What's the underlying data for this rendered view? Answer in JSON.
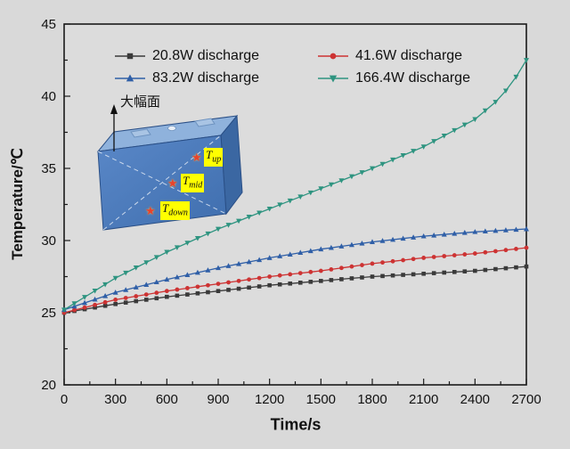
{
  "figure": {
    "background": "#d9d9d9"
  },
  "chart_data": {
    "type": "line",
    "title": "",
    "xlabel": "Time/s",
    "ylabel": "Temperature/℃",
    "xlim": [
      0,
      2700
    ],
    "ylim": [
      20,
      45
    ],
    "x_major_ticks": [
      0,
      300,
      600,
      900,
      1200,
      1500,
      1800,
      2100,
      2400,
      2700
    ],
    "y_major_ticks": [
      20,
      25,
      30,
      35,
      40,
      45
    ],
    "x_minor_step": 150,
    "y_minor_step": 2.5,
    "marker_interval_s": 60,
    "grid": false,
    "legend_position": "top-inside",
    "legend_columns": 2,
    "series": [
      {
        "name": "20.8W discharge",
        "color": "#3a3a3a",
        "marker": "square",
        "x": [
          0,
          300,
          600,
          900,
          1200,
          1500,
          1800,
          2100,
          2400,
          2700
        ],
        "y": [
          25.0,
          25.6,
          26.1,
          26.5,
          26.9,
          27.2,
          27.5,
          27.7,
          27.9,
          28.2
        ]
      },
      {
        "name": "41.6W discharge",
        "color": "#cd3333",
        "marker": "circle",
        "x": [
          0,
          300,
          600,
          900,
          1200,
          1500,
          1800,
          2100,
          2400,
          2700
        ],
        "y": [
          25.0,
          25.9,
          26.5,
          27.0,
          27.5,
          27.9,
          28.4,
          28.8,
          29.1,
          29.5
        ]
      },
      {
        "name": "83.2W discharge",
        "color": "#2f5fa7",
        "marker": "triangle-up",
        "x": [
          0,
          300,
          600,
          900,
          1200,
          1500,
          1800,
          2100,
          2400,
          2700
        ],
        "y": [
          25.2,
          26.4,
          27.3,
          28.1,
          28.8,
          29.4,
          29.9,
          30.3,
          30.6,
          30.8
        ]
      },
      {
        "name": "166.4W discharge",
        "color": "#2e9480",
        "marker": "triangle-down",
        "x": [
          0,
          300,
          600,
          900,
          1200,
          1500,
          1800,
          2100,
          2400,
          2550,
          2650,
          2700
        ],
        "y": [
          25.2,
          27.4,
          29.2,
          30.8,
          32.2,
          33.6,
          35.0,
          36.5,
          38.4,
          39.9,
          41.5,
          42.5
        ]
      }
    ]
  },
  "inset": {
    "arrow_label": "大幅面",
    "sensors": [
      {
        "main": "T",
        "sub": "up"
      },
      {
        "main": "T",
        "sub": "mid"
      },
      {
        "main": "T",
        "sub": "down"
      }
    ],
    "label_bg": "#ffff00",
    "star_color": "#e8432c",
    "battery_colors": {
      "front": "#4d7ec0",
      "top": "#8fb2dc",
      "side": "#3b67a2"
    }
  }
}
